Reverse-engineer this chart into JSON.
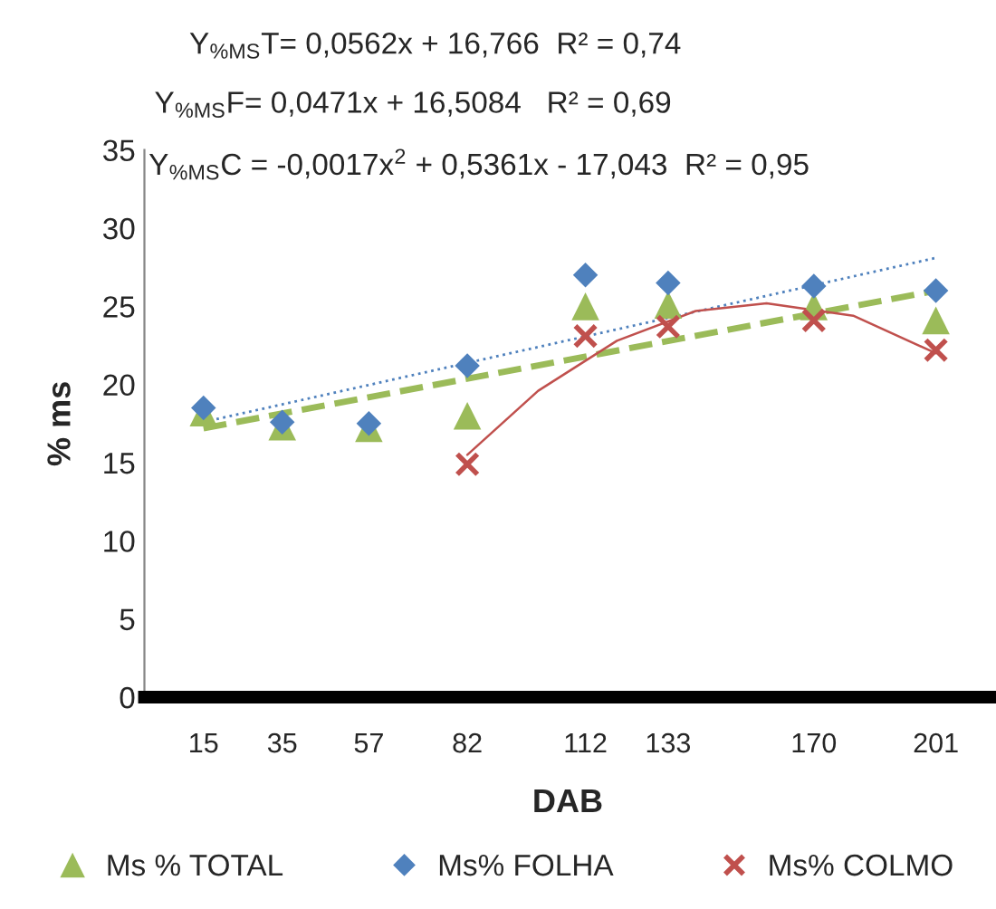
{
  "chart_data": {
    "type": "scatter",
    "xlabel": "DAB",
    "ylabel": "% ms",
    "xlim": [
      0,
      215
    ],
    "xticks": [
      15,
      35,
      57,
      82,
      112,
      133,
      170,
      201
    ],
    "ylim": [
      0,
      35
    ],
    "yticks": [
      0,
      5,
      10,
      15,
      20,
      25,
      30,
      35
    ],
    "grid": false,
    "legend": "bottom",
    "annotations": [
      "Y$_{%MS}$T= 0,0562x + 16,766  R² = 0,74",
      "Y$_{%MS}$F= 0,0471x + 16,5084   R² = 0,69",
      "Y$_{%MS}$C = -0,0017x$^{2}$ + 0,5361x - 17,043  R² = 0,95"
    ],
    "series": [
      {
        "name": "Ms % TOTAL",
        "color": "#9bbb59",
        "marker": "triangle",
        "x": [
          15,
          35,
          57,
          82,
          112,
          133,
          170,
          201
        ],
        "values": [
          18.2,
          17.3,
          17.2,
          18.0,
          25.0,
          25.1,
          25.0,
          24.1
        ]
      },
      {
        "name": "Ms% FOLHA",
        "color": "#4f81bd",
        "marker": "diamond",
        "x": [
          15,
          35,
          57,
          82,
          112,
          133,
          170,
          201
        ],
        "values": [
          18.5,
          17.6,
          17.5,
          21.2,
          27.0,
          26.5,
          26.3,
          26.0
        ]
      },
      {
        "name": "Ms% COLMO",
        "color": "#c0504d",
        "marker": "cross",
        "x": [
          82,
          112,
          133,
          170,
          201
        ],
        "values": [
          14.9,
          23.1,
          23.7,
          24.1,
          22.2
        ]
      },
      {
        "type": "line",
        "color": "#4f81bd",
        "line_style": "dotted",
        "x": [
          15,
          201
        ],
        "values": [
          17.6,
          28.1
        ]
      },
      {
        "type": "line",
        "color": "#9bbb59",
        "line_style": "dashed",
        "x": [
          15,
          201
        ],
        "values": [
          17.2,
          26.0
        ]
      },
      {
        "type": "line",
        "color": "#c0504d",
        "line_style": "solid",
        "x": [
          82,
          100,
          120,
          140,
          158,
          180,
          201
        ],
        "values": [
          15.5,
          19.6,
          22.8,
          24.7,
          25.2,
          24.4,
          22.0
        ]
      }
    ]
  }
}
